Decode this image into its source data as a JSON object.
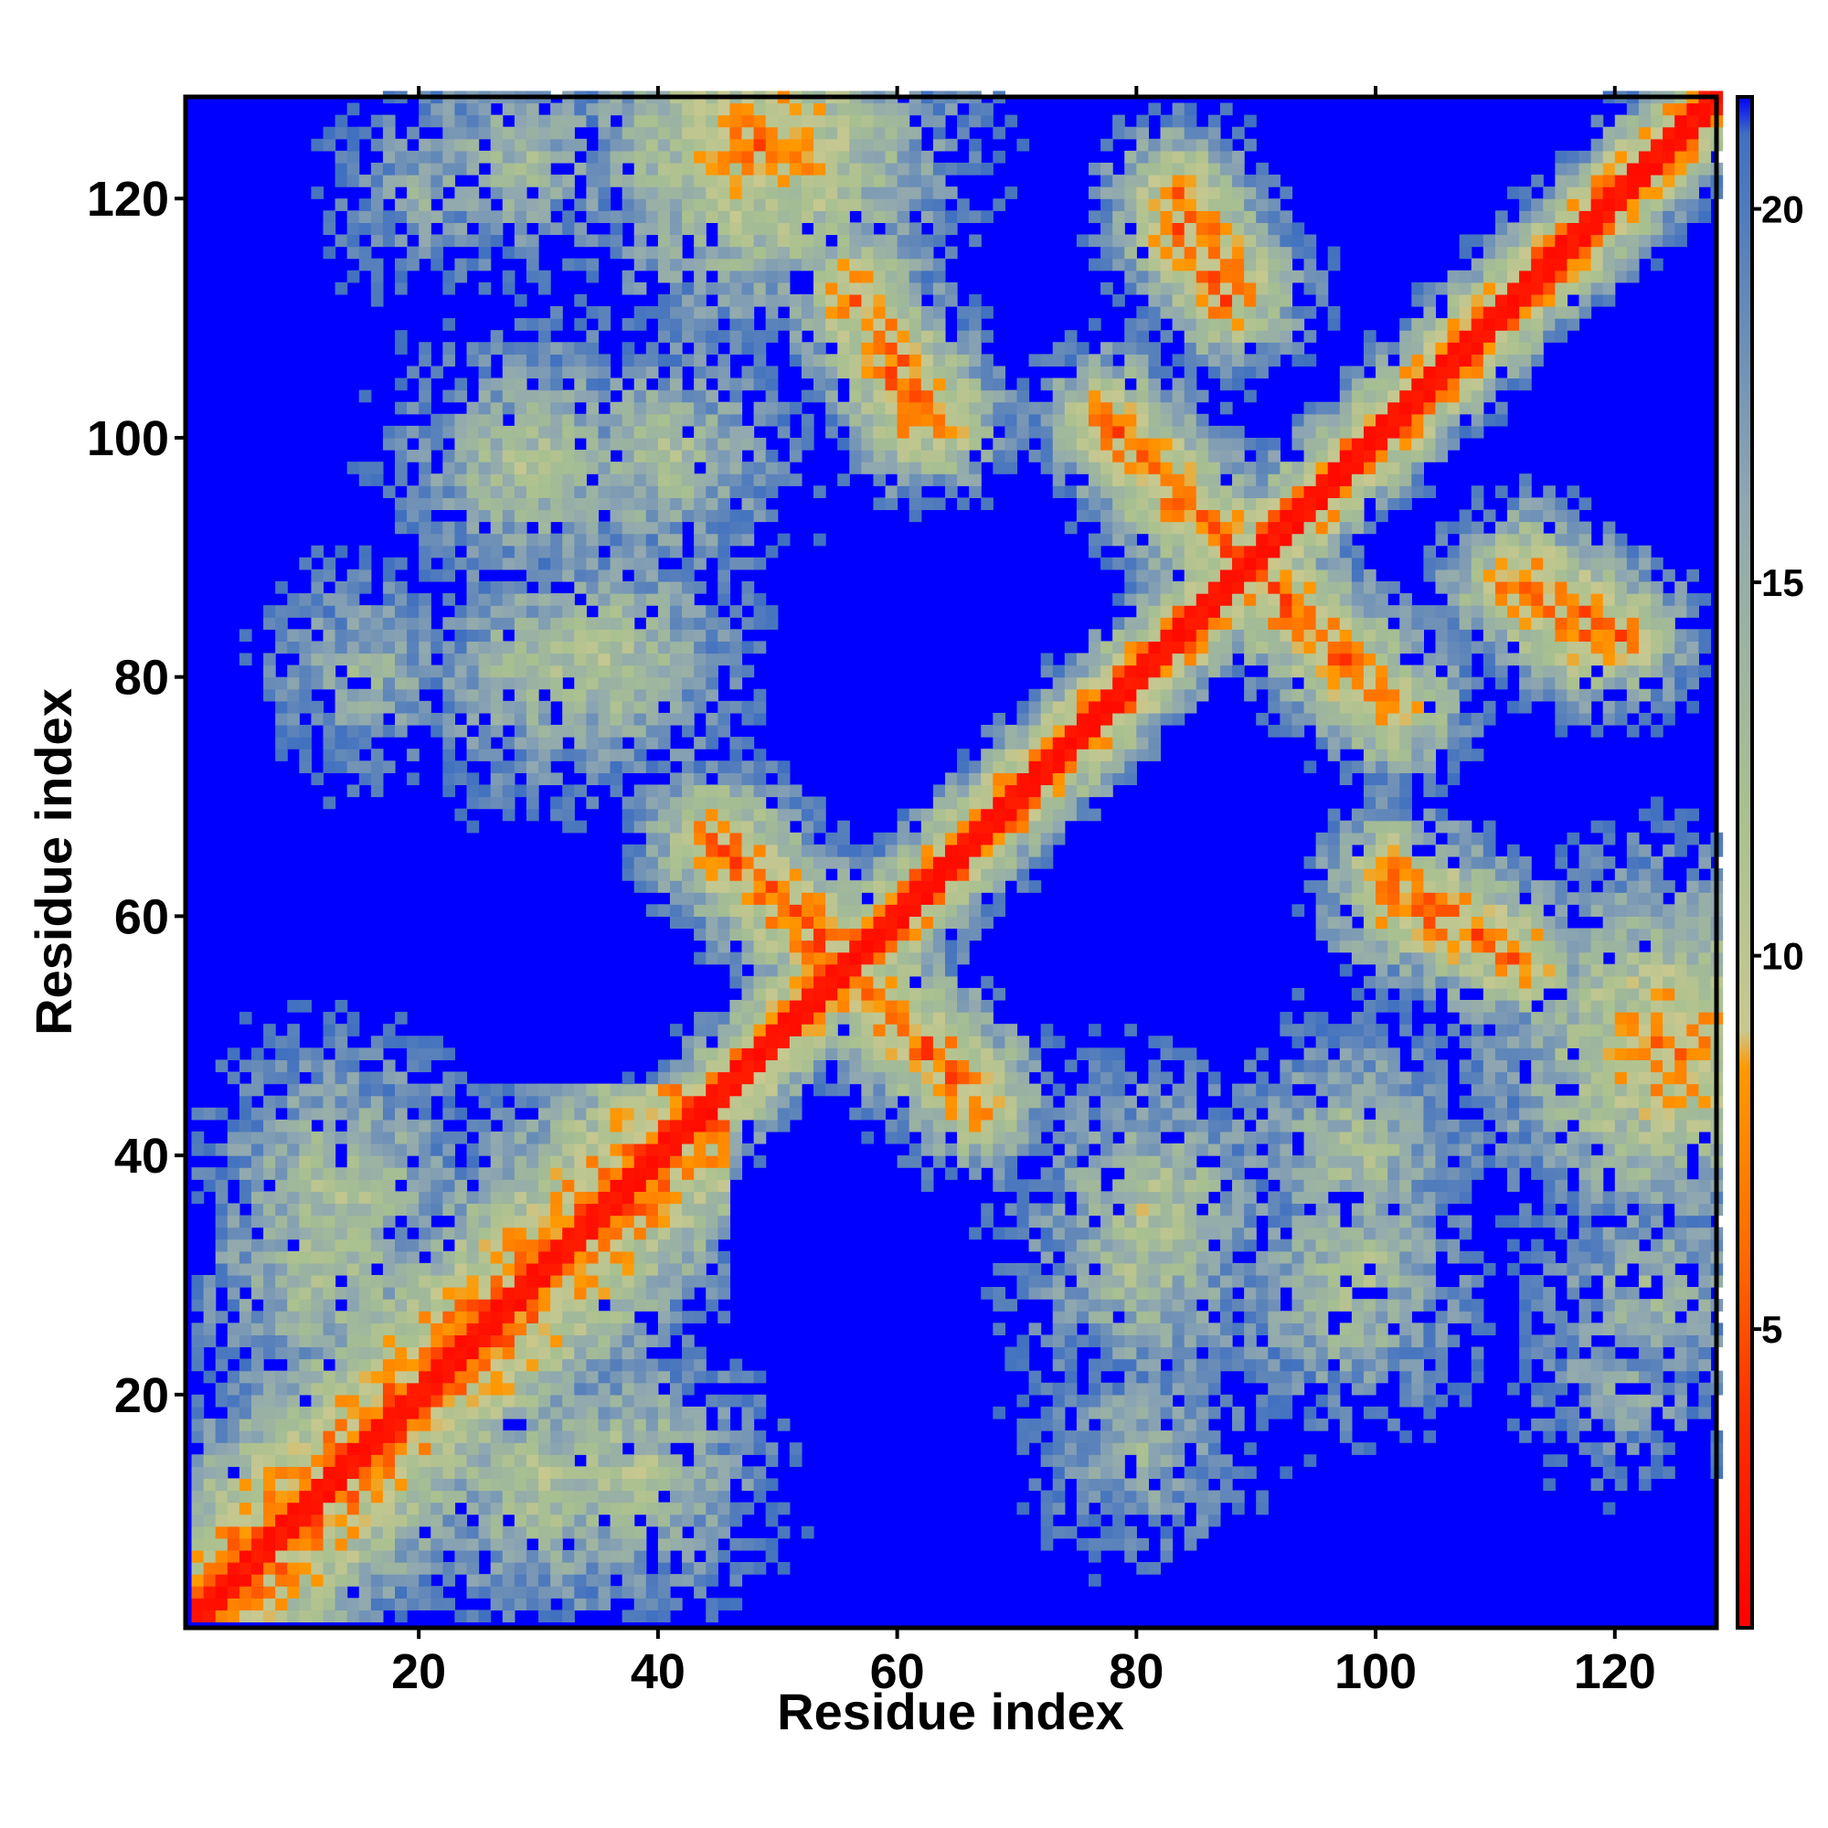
{
  "chart_data": {
    "type": "heatmap",
    "title": "",
    "xlabel": "Residue index",
    "ylabel": "Residue index",
    "x_range": [
      1,
      128
    ],
    "y_range": [
      1,
      128
    ],
    "x_ticks": [
      20,
      40,
      60,
      80,
      100,
      120
    ],
    "y_ticks": [
      20,
      40,
      60,
      80,
      100,
      120
    ],
    "value_range": [
      1,
      21.5
    ],
    "cutoff": 21,
    "colorbar_ticks": [
      5,
      10,
      15,
      20
    ],
    "colorscale": [
      {
        "value": 1,
        "color": "#ff0000"
      },
      {
        "value": 4,
        "color": "#ff3300"
      },
      {
        "value": 6,
        "color": "#ff6a00"
      },
      {
        "value": 8.5,
        "color": "#ff9900"
      },
      {
        "value": 9,
        "color": "#c8c890"
      },
      {
        "value": 12,
        "color": "#a8c090"
      },
      {
        "value": 16,
        "color": "#90a8b0"
      },
      {
        "value": 21,
        "color": "#4070c0"
      },
      {
        "value": 21.5,
        "color": "#0000ff"
      }
    ],
    "background_color": "#0000ff",
    "diagonal": {
      "value": 1.5
    },
    "features": [
      {
        "kind": "near-diagonal band",
        "residues": [
          1,
          45
        ],
        "value": 7
      },
      {
        "kind": "anti-parallel contact",
        "from": [
          45,
          66
        ],
        "to": [
          56,
          55
        ],
        "value": 6.5
      },
      {
        "kind": "anti-parallel contact",
        "from": [
          56,
          54
        ],
        "to": [
          66,
          44
        ],
        "value": 6.5
      },
      {
        "kind": "anti-parallel contact",
        "from": [
          77,
          101
        ],
        "to": [
          88,
          90
        ],
        "value": 6.5
      },
      {
        "kind": "anti-parallel contact",
        "from": [
          90,
          87
        ],
        "to": [
          101,
          77
        ],
        "value": 6.5
      },
      {
        "kind": "anti-parallel contact",
        "from": [
          101,
          63
        ],
        "to": [
          111,
          56
        ],
        "value": 6.5
      },
      {
        "kind": "anti-parallel contact",
        "from": [
          111,
          87
        ],
        "to": [
          117,
          83
        ],
        "value": 6.5
      },
      {
        "kind": "anti-parallel contact",
        "from": [
          56,
          112
        ],
        "to": [
          61,
          101
        ],
        "value": 6.5
      },
      {
        "kind": "anti-parallel contact",
        "from": [
          83,
          120
        ],
        "to": [
          88,
          112
        ],
        "value": 6.5
      },
      {
        "kind": "contact patch",
        "center": [
          48,
          124
        ],
        "value": 7
      },
      {
        "kind": "contact patch",
        "center": [
          124,
          49
        ],
        "value": 7
      },
      {
        "kind": "contact patch",
        "center": [
          13,
          37
        ],
        "value": 11
      },
      {
        "kind": "contact patch",
        "center": [
          30,
          12
        ],
        "value": 11
      },
      {
        "kind": "contact patch",
        "center": [
          80,
          30
        ],
        "value": 12
      },
      {
        "kind": "contact patch",
        "center": [
          97,
          28
        ],
        "value": 12
      },
      {
        "kind": "contact patch",
        "center": [
          123,
          28
        ],
        "value": 13
      },
      {
        "kind": "contact patch",
        "center": [
          35,
          81
        ],
        "value": 11
      },
      {
        "kind": "contact patch",
        "center": [
          30,
          98
        ],
        "value": 12
      },
      {
        "kind": "contact patch",
        "center": [
          40,
          98
        ],
        "value": 12
      },
      {
        "kind": "contact patch",
        "center": [
          15,
          80
        ],
        "value": 14
      },
      {
        "kind": "contact patch",
        "center": [
          20,
          120
        ],
        "value": 15
      }
    ]
  }
}
